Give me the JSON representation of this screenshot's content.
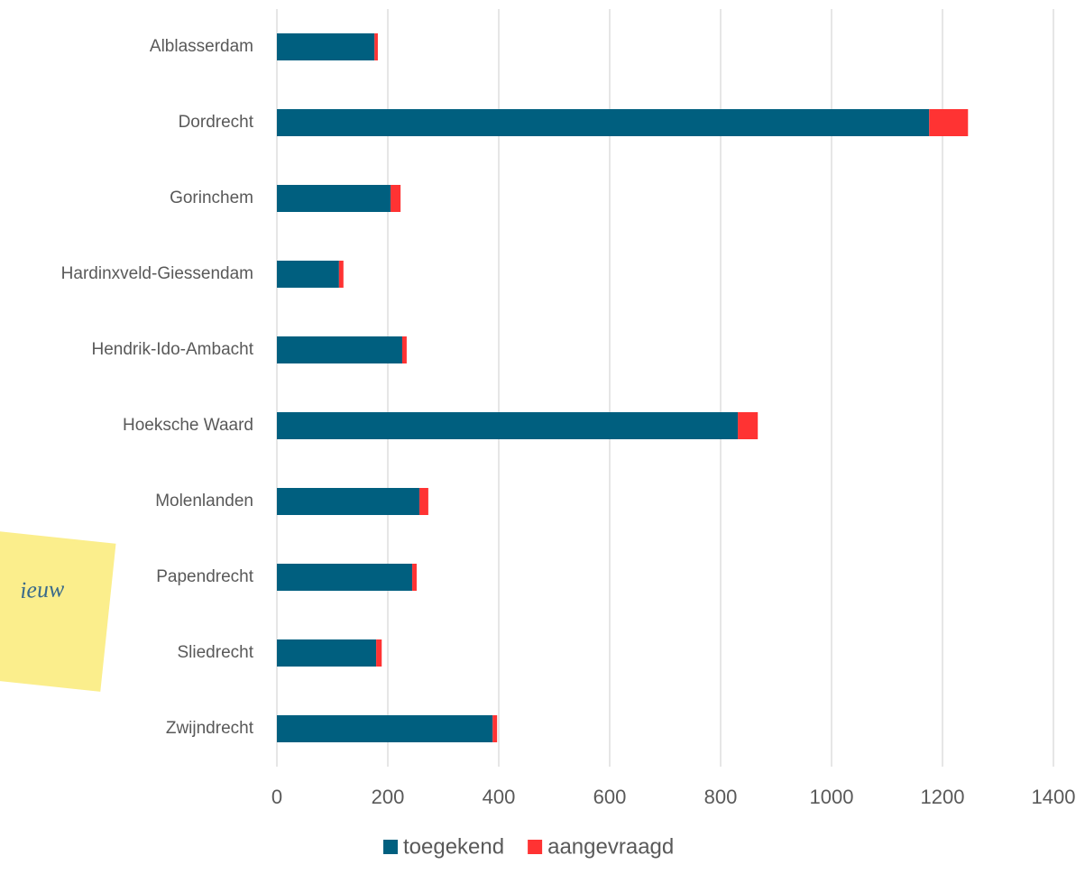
{
  "chart_data": {
    "type": "stacked_barh",
    "categories": [
      "Alblasserdam",
      "Dordrecht",
      "Gorinchem",
      "Hardinxveld-Giessendam",
      "Hendrik-Ido-Ambacht",
      "Hoeksche Waard",
      "Molenlanden",
      "Papendrecht",
      "Sliedrecht",
      "Zwijndrecht"
    ],
    "series": [
      {
        "name": "toegekend",
        "color": "#005f7f",
        "values": [
          176,
          1176,
          205,
          112,
          226,
          831,
          257,
          244,
          179,
          389
        ]
      },
      {
        "name": "aangevraagd",
        "color": "#ff3333",
        "values": [
          6,
          70,
          18,
          8,
          8,
          36,
          16,
          8,
          10,
          8
        ]
      }
    ],
    "xlim": [
      0,
      1400
    ],
    "xticks": [
      0,
      200,
      400,
      600,
      800,
      1000,
      1200,
      1400
    ],
    "grid": true,
    "legend": "bottom",
    "note": "ieuw"
  }
}
